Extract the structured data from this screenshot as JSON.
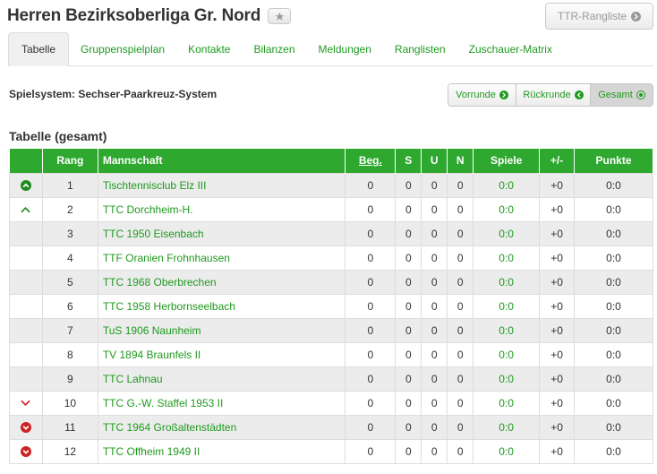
{
  "header": {
    "title": "Herren Bezirksoberliga Gr. Nord",
    "ttr_button": "TTR-Rangliste"
  },
  "tabs": [
    {
      "label": "Tabelle",
      "active": true
    },
    {
      "label": "Gruppenspielplan"
    },
    {
      "label": "Kontakte"
    },
    {
      "label": "Bilanzen"
    },
    {
      "label": "Meldungen"
    },
    {
      "label": "Ranglisten"
    },
    {
      "label": "Zuschauer-Matrix"
    }
  ],
  "spielsystem": "Spielsystem: Sechser-Paarkreuz-System",
  "segments": {
    "vorrunde": "Vorrunde",
    "rueckrunde": "Rückrunde",
    "gesamt": "Gesamt"
  },
  "section_title": "Tabelle (gesamt)",
  "table": {
    "headers": {
      "rang": "Rang",
      "mannschaft": "Mannschaft",
      "beg": "Beg.",
      "s": "S",
      "u": "U",
      "n": "N",
      "spiele": "Spiele",
      "diff": "+/-",
      "punkte": "Punkte"
    },
    "rows": [
      {
        "trend": "up-circle",
        "rang": "1",
        "team": "Tischtennisclub Elz III",
        "beg": "0",
        "s": "0",
        "u": "0",
        "n": "0",
        "spiele": "0:0",
        "diff": "+0",
        "punkte": "0:0"
      },
      {
        "trend": "up",
        "rang": "2",
        "team": "TTC Dorchheim-H.",
        "beg": "0",
        "s": "0",
        "u": "0",
        "n": "0",
        "spiele": "0:0",
        "diff": "+0",
        "punkte": "0:0"
      },
      {
        "trend": "",
        "rang": "3",
        "team": "TTC 1950 Eisenbach",
        "beg": "0",
        "s": "0",
        "u": "0",
        "n": "0",
        "spiele": "0:0",
        "diff": "+0",
        "punkte": "0:0"
      },
      {
        "trend": "",
        "rang": "4",
        "team": "TTF Oranien Frohnhausen",
        "beg": "0",
        "s": "0",
        "u": "0",
        "n": "0",
        "spiele": "0:0",
        "diff": "+0",
        "punkte": "0:0"
      },
      {
        "trend": "",
        "rang": "5",
        "team": "TTC 1968 Oberbrechen",
        "beg": "0",
        "s": "0",
        "u": "0",
        "n": "0",
        "spiele": "0:0",
        "diff": "+0",
        "punkte": "0:0"
      },
      {
        "trend": "",
        "rang": "6",
        "team": "TTC 1958 Herbornseelbach",
        "beg": "0",
        "s": "0",
        "u": "0",
        "n": "0",
        "spiele": "0:0",
        "diff": "+0",
        "punkte": "0:0"
      },
      {
        "trend": "",
        "rang": "7",
        "team": "TuS 1906 Naunheim",
        "beg": "0",
        "s": "0",
        "u": "0",
        "n": "0",
        "spiele": "0:0",
        "diff": "+0",
        "punkte": "0:0"
      },
      {
        "trend": "",
        "rang": "8",
        "team": "TV 1894 Braunfels II",
        "beg": "0",
        "s": "0",
        "u": "0",
        "n": "0",
        "spiele": "0:0",
        "diff": "+0",
        "punkte": "0:0"
      },
      {
        "trend": "",
        "rang": "9",
        "team": "TTC Lahnau",
        "beg": "0",
        "s": "0",
        "u": "0",
        "n": "0",
        "spiele": "0:0",
        "diff": "+0",
        "punkte": "0:0"
      },
      {
        "trend": "down",
        "rang": "10",
        "team": "TTC G.-W. Staffel 1953 II",
        "beg": "0",
        "s": "0",
        "u": "0",
        "n": "0",
        "spiele": "0:0",
        "diff": "+0",
        "punkte": "0:0"
      },
      {
        "trend": "down-circle",
        "rang": "11",
        "team": "TTC 1964 Großaltenstädten",
        "beg": "0",
        "s": "0",
        "u": "0",
        "n": "0",
        "spiele": "0:0",
        "diff": "+0",
        "punkte": "0:0"
      },
      {
        "trend": "down-circle",
        "rang": "12",
        "team": "TTC Offheim 1949 II",
        "beg": "0",
        "s": "0",
        "u": "0",
        "n": "0",
        "spiele": "0:0",
        "diff": "+0",
        "punkte": "0:0"
      }
    ]
  },
  "colors": {
    "accent": "#2ea82e",
    "link": "#1f9a1f",
    "up": "#1f8a1f",
    "down": "#cc2222"
  }
}
